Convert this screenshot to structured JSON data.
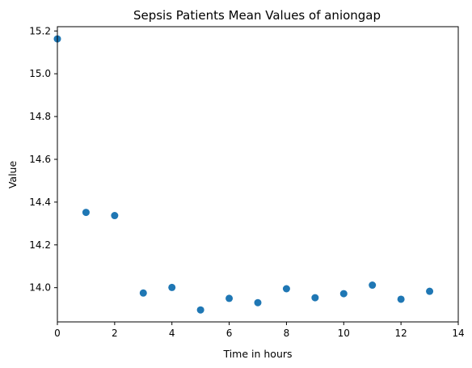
{
  "chart_data": {
    "type": "scatter",
    "title": "Sepsis Patients Mean Values of aniongap",
    "xlabel": "Time in hours",
    "ylabel": "Value",
    "xlim": [
      0,
      14
    ],
    "ylim": [
      13.84,
      15.22
    ],
    "x_ticks": [
      0,
      2,
      4,
      6,
      8,
      10,
      12,
      14
    ],
    "y_ticks": [
      14.0,
      14.2,
      14.4,
      14.6,
      14.8,
      15.0,
      15.2
    ],
    "x_tick_labels": [
      "0",
      "2",
      "4",
      "6",
      "8",
      "10",
      "12",
      "14"
    ],
    "y_tick_labels": [
      "14.0",
      "14.2",
      "14.4",
      "14.6",
      "14.8",
      "15.0",
      "15.2"
    ],
    "grid": false,
    "marker_color": "#1f77b4",
    "x": [
      0,
      1,
      2,
      3,
      4,
      5,
      6,
      7,
      8,
      9,
      10,
      11,
      12,
      13
    ],
    "y": [
      15.163,
      14.352,
      14.337,
      13.975,
      14.001,
      13.896,
      13.95,
      13.93,
      13.995,
      13.953,
      13.972,
      14.012,
      13.946,
      13.983
    ]
  }
}
